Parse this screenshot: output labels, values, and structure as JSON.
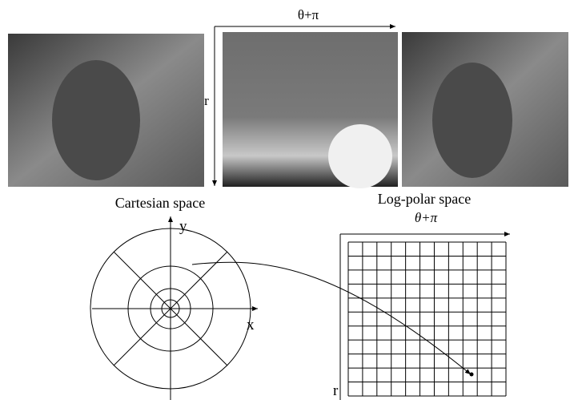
{
  "top_figure": {
    "theta_axis_label": "θ+π",
    "r_axis_label": "r"
  },
  "cartesian": {
    "title": "Cartesian space",
    "y_axis_label": "y",
    "x_axis_label": "x"
  },
  "log_polar": {
    "title": "Log-polar space",
    "theta_axis_label": "θ+π",
    "r_axis_label": "r"
  }
}
